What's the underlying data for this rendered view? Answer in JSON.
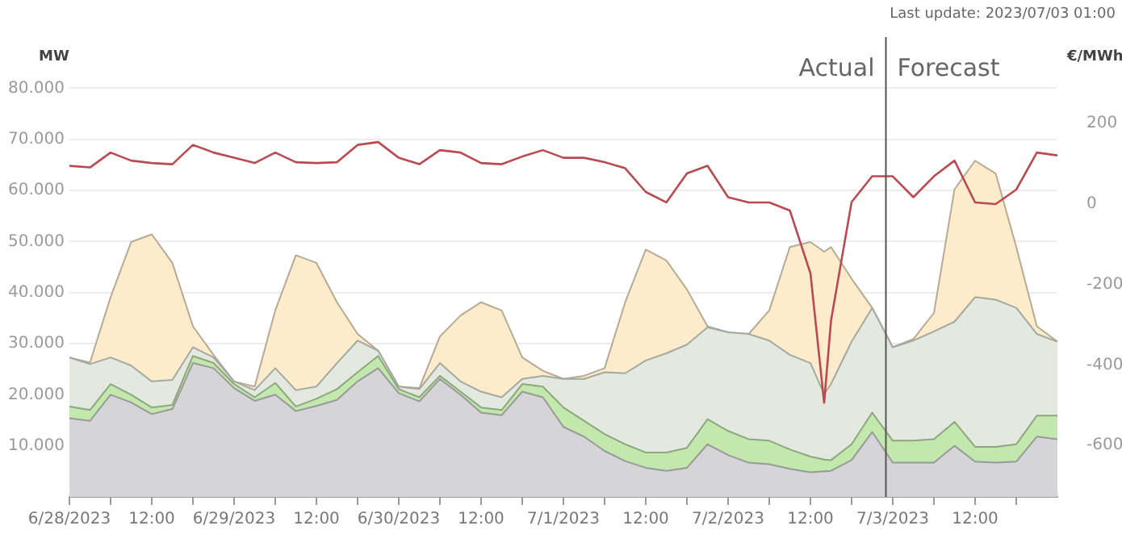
{
  "chart_data": {
    "type": "area",
    "stacked": true,
    "ylabel": "MW",
    "y2label": "€/MWh",
    "x": [
      "2023-06-28T00:00",
      "2023-06-28T03:00",
      "2023-06-28T06:00",
      "2023-06-28T09:00",
      "2023-06-28T12:00",
      "2023-06-28T15:00",
      "2023-06-28T18:00",
      "2023-06-28T21:00",
      "2023-06-29T00:00",
      "2023-06-29T03:00",
      "2023-06-29T06:00",
      "2023-06-29T09:00",
      "2023-06-29T12:00",
      "2023-06-29T15:00",
      "2023-06-29T18:00",
      "2023-06-29T21:00",
      "2023-06-30T00:00",
      "2023-06-30T03:00",
      "2023-06-30T06:00",
      "2023-06-30T09:00",
      "2023-06-30T12:00",
      "2023-06-30T15:00",
      "2023-06-30T18:00",
      "2023-06-30T21:00",
      "2023-07-01T00:00",
      "2023-07-01T03:00",
      "2023-07-01T06:00",
      "2023-07-01T09:00",
      "2023-07-01T12:00",
      "2023-07-01T15:00",
      "2023-07-01T18:00",
      "2023-07-01T21:00",
      "2023-07-02T00:00",
      "2023-07-02T03:00",
      "2023-07-02T06:00",
      "2023-07-02T09:00",
      "2023-07-02T12:00",
      "2023-07-02T14:00",
      "2023-07-02T15:00",
      "2023-07-02T18:00",
      "2023-07-02T21:00",
      "2023-07-03T00:00",
      "2023-07-03T03:00",
      "2023-07-03T06:00",
      "2023-07-03T09:00",
      "2023-07-03T12:00",
      "2023-07-03T15:00",
      "2023-07-03T18:00",
      "2023-07-03T21:00",
      "2023-07-04T00:00"
    ],
    "series": [
      {
        "color": "#d5d5d7",
        "values": [
          15400,
          14900,
          20000,
          18500,
          16200,
          17200,
          26200,
          25200,
          21300,
          18800,
          20000,
          16800,
          17800,
          19000,
          22600,
          25200,
          20300,
          18700,
          23100,
          20000,
          16500,
          16000,
          20600,
          19500,
          13700,
          11800,
          9000,
          7000,
          5700,
          5100,
          5700,
          10300,
          8200,
          6700,
          6400,
          5500,
          4800,
          5000,
          5100,
          7200,
          12700,
          6700,
          6700,
          6700,
          10000,
          6900,
          6700,
          6900,
          11800,
          11300
        ]
      },
      {
        "color": "#c3e8ad",
        "values": [
          2300,
          2100,
          2100,
          1500,
          1300,
          800,
          1400,
          1000,
          800,
          700,
          2300,
          900,
          1400,
          2100,
          1800,
          2400,
          800,
          800,
          600,
          600,
          1000,
          1000,
          1500,
          2100,
          3800,
          3100,
          3300,
          3300,
          3000,
          3600,
          3900,
          4900,
          4700,
          4600,
          4600,
          3800,
          3100,
          2300,
          2100,
          3100,
          3800,
          4300,
          4300,
          4600,
          4700,
          2900,
          3100,
          3400,
          4100,
          4600
        ]
      },
      {
        "color": "#e3e9df",
        "values": [
          9600,
          9000,
          5200,
          5700,
          5100,
          4900,
          1700,
          1100,
          500,
          1400,
          2900,
          3200,
          2400,
          5100,
          6200,
          1000,
          500,
          1600,
          2500,
          2000,
          3100,
          2500,
          1000,
          2100,
          5600,
          8200,
          12100,
          13900,
          18000,
          19400,
          20200,
          18000,
          19300,
          20600,
          19600,
          18500,
          18300,
          12800,
          14900,
          20100,
          20500,
          18300,
          19600,
          21100,
          19600,
          29300,
          28800,
          26700,
          16000,
          14500
        ]
      },
      {
        "color": "#fdeccc",
        "values": [
          0,
          300,
          11800,
          24200,
          28800,
          22900,
          4100,
          500,
          0,
          700,
          11300,
          26400,
          24200,
          11900,
          1300,
          0,
          0,
          200,
          5200,
          12900,
          17500,
          17000,
          4200,
          1000,
          0,
          600,
          800,
          13900,
          21700,
          18200,
          10800,
          200,
          0,
          0,
          5900,
          21100,
          23700,
          27900,
          26800,
          12300,
          0,
          0,
          300,
          3600,
          25900,
          26700,
          24700,
          11900,
          1500,
          0
        ]
      },
      {
        "type": "line",
        "axis": "y2",
        "color": "#b94a52",
        "values": [
          95,
          91,
          128,
          108,
          102,
          99,
          147,
          128,
          115,
          102,
          128,
          104,
          102,
          104,
          147,
          154,
          115,
          99,
          134,
          128,
          102,
          99,
          118,
          134,
          115,
          115,
          104,
          89,
          30,
          4,
          76,
          95,
          17,
          4,
          4,
          -16,
          -172,
          -494,
          -290,
          5,
          69,
          69,
          17,
          69,
          108,
          4,
          0,
          36,
          128,
          121
        ]
      }
    ],
    "xlim": [
      "2023-06-28T00:00",
      "2023-07-04T00:00"
    ],
    "xticks": [
      {
        "value": "2023-06-28T00:00",
        "label": "6/28/2023"
      },
      {
        "value": "2023-06-28T06:00",
        "label": null
      },
      {
        "value": "2023-06-28T12:00",
        "label": "12:00"
      },
      {
        "value": "2023-06-28T18:00",
        "label": null
      },
      {
        "value": "2023-06-29T00:00",
        "label": "6/29/2023"
      },
      {
        "value": "2023-06-29T06:00",
        "label": null
      },
      {
        "value": "2023-06-29T12:00",
        "label": "12:00"
      },
      {
        "value": "2023-06-29T18:00",
        "label": null
      },
      {
        "value": "2023-06-30T00:00",
        "label": "6/30/2023"
      },
      {
        "value": "2023-06-30T06:00",
        "label": null
      },
      {
        "value": "2023-06-30T12:00",
        "label": "12:00"
      },
      {
        "value": "2023-06-30T18:00",
        "label": null
      },
      {
        "value": "2023-07-01T00:00",
        "label": "7/1/2023"
      },
      {
        "value": "2023-07-01T06:00",
        "label": null
      },
      {
        "value": "2023-07-01T12:00",
        "label": "12:00"
      },
      {
        "value": "2023-07-01T18:00",
        "label": null
      },
      {
        "value": "2023-07-02T00:00",
        "label": "7/2/2023"
      },
      {
        "value": "2023-07-02T06:00",
        "label": null
      },
      {
        "value": "2023-07-02T12:00",
        "label": "12:00"
      },
      {
        "value": "2023-07-02T18:00",
        "label": null
      },
      {
        "value": "2023-07-03T00:00",
        "label": "7/3/2023"
      },
      {
        "value": "2023-07-03T06:00",
        "label": null
      },
      {
        "value": "2023-07-03T12:00",
        "label": "12:00"
      },
      {
        "value": "2023-07-03T18:00",
        "label": null
      }
    ],
    "ylim": [
      0,
      90000
    ],
    "yticks": [
      {
        "value": 10000,
        "label": "10.000"
      },
      {
        "value": 20000,
        "label": "20.000"
      },
      {
        "value": 30000,
        "label": "30.000"
      },
      {
        "value": 40000,
        "label": "40.000"
      },
      {
        "value": 50000,
        "label": "50.000"
      },
      {
        "value": 60000,
        "label": "60.000"
      },
      {
        "value": 70000,
        "label": "70.000"
      },
      {
        "value": 80000,
        "label": "80.000"
      }
    ],
    "y2lim": [
      -728,
      415
    ],
    "y2ticks": [
      -600,
      -400,
      -200,
      0,
      200
    ],
    "grid": "y",
    "marker": "none",
    "line_style": "solid",
    "ref_lines": [
      {
        "axis": "x",
        "value": "2023-07-02T23:00",
        "color": "#555555"
      }
    ],
    "annotations": [
      "Last update: 2023/07/03 01:00",
      "Actual",
      "Forecast"
    ]
  }
}
